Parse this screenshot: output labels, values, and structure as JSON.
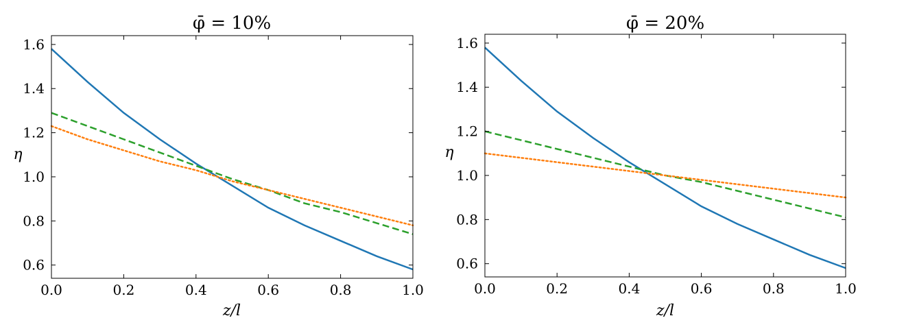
{
  "chart_data": [
    {
      "type": "line",
      "title": "φ̄ = 10%",
      "xlabel": "z/l",
      "ylabel": "η",
      "xlim": [
        0.0,
        1.0
      ],
      "ylim": [
        0.54,
        1.64
      ],
      "x_ticks": [
        0.0,
        0.2,
        0.4,
        0.6,
        0.8,
        1.0
      ],
      "x_tick_labels": [
        "0.0",
        "0.2",
        "0.4",
        "0.6",
        "0.8",
        "1.0"
      ],
      "y_ticks": [
        0.6,
        0.8,
        1.0,
        1.2,
        1.4,
        1.6
      ],
      "y_tick_labels": [
        "0.6",
        "0.8",
        "1.0",
        "1.2",
        "1.4",
        "1.6"
      ],
      "ticks_direction": "in",
      "grid": false,
      "legend": "none",
      "x": [
        0.0,
        0.1,
        0.2,
        0.3,
        0.4,
        0.5,
        0.6,
        0.7,
        0.8,
        0.9,
        1.0
      ],
      "series": [
        {
          "color": "#1f77b4",
          "style": "solid",
          "values": [
            1.58,
            1.43,
            1.29,
            1.17,
            1.06,
            0.96,
            0.86,
            0.78,
            0.71,
            0.64,
            0.58
          ]
        },
        {
          "color": "#2ca02c",
          "style": "dashed",
          "values": [
            1.29,
            1.23,
            1.17,
            1.11,
            1.05,
            0.99,
            0.94,
            0.88,
            0.84,
            0.79,
            0.74
          ]
        },
        {
          "color": "#ff7f0e",
          "style": "dotted",
          "values": [
            1.23,
            1.17,
            1.12,
            1.07,
            1.03,
            0.98,
            0.94,
            0.9,
            0.86,
            0.82,
            0.78
          ]
        }
      ]
    },
    {
      "type": "line",
      "title": "φ̄ = 20%",
      "xlabel": "z/l",
      "ylabel": "η",
      "xlim": [
        0.0,
        1.0
      ],
      "ylim": [
        0.54,
        1.64
      ],
      "x_ticks": [
        0.0,
        0.2,
        0.4,
        0.6,
        0.8,
        1.0
      ],
      "x_tick_labels": [
        "0.0",
        "0.2",
        "0.4",
        "0.6",
        "0.8",
        "1.0"
      ],
      "y_ticks": [
        0.6,
        0.8,
        1.0,
        1.2,
        1.4,
        1.6
      ],
      "y_tick_labels": [
        "0.6",
        "0.8",
        "1.0",
        "1.2",
        "1.4",
        "1.6"
      ],
      "ticks_direction": "in",
      "grid": false,
      "legend": "none",
      "x": [
        0.0,
        0.1,
        0.2,
        0.3,
        0.4,
        0.5,
        0.6,
        0.7,
        0.8,
        0.9,
        1.0
      ],
      "series": [
        {
          "color": "#1f77b4",
          "style": "solid",
          "values": [
            1.58,
            1.43,
            1.29,
            1.17,
            1.06,
            0.96,
            0.86,
            0.78,
            0.71,
            0.64,
            0.58
          ]
        },
        {
          "color": "#2ca02c",
          "style": "dashed",
          "values": [
            1.2,
            1.16,
            1.12,
            1.08,
            1.04,
            1.0,
            0.97,
            0.93,
            0.89,
            0.85,
            0.81
          ]
        },
        {
          "color": "#ff7f0e",
          "style": "dotted",
          "values": [
            1.1,
            1.08,
            1.06,
            1.04,
            1.02,
            1.0,
            0.98,
            0.96,
            0.94,
            0.92,
            0.9
          ]
        }
      ]
    }
  ]
}
